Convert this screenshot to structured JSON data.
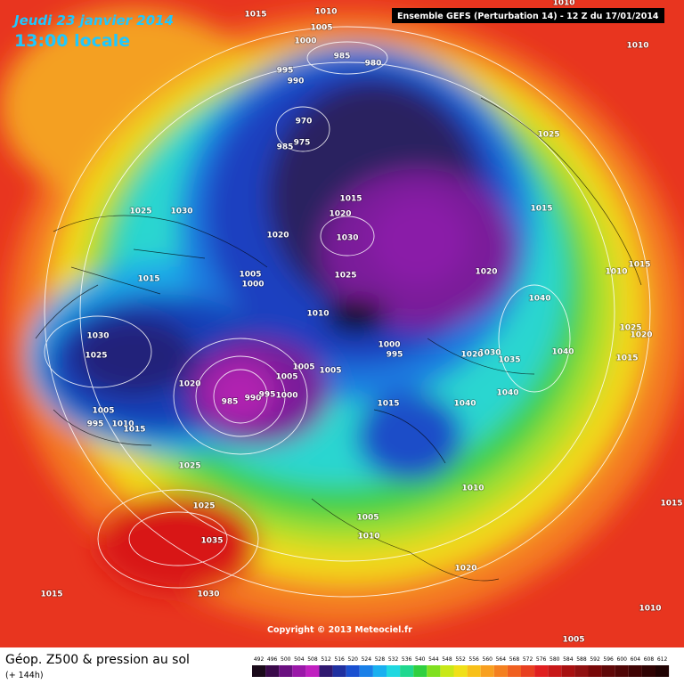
{
  "header": {
    "date": "Jeudi 23 janvier 2014",
    "time": "13:00 locale",
    "model": "Ensemble GEFS (Perturbation 14)  -  12 Z du 17/01/2014"
  },
  "footer": {
    "copyright": "Copyright © 2013 Meteociel.fr",
    "title": "Géop. Z500 & pression au sol",
    "lead": "(+ 144h)"
  },
  "pressure_labels": [
    1015,
    1010,
    1005,
    1000,
    995,
    990,
    985,
    980,
    970,
    975,
    985,
    1015,
    1020,
    1020,
    1030,
    1025,
    1005,
    1000,
    1010,
    1025,
    1030,
    1015,
    1030,
    1025,
    1020,
    1005,
    995,
    1010,
    1015,
    985,
    990,
    995,
    1000,
    1005,
    1005,
    1005,
    1000,
    995,
    1015,
    1040,
    1040,
    1020,
    1040,
    1030,
    1035,
    1020,
    1040,
    1015,
    1025,
    1010,
    1010,
    1015,
    1025,
    1020,
    1015,
    1025,
    1025,
    1035,
    1030,
    1015,
    1010,
    1005,
    1010,
    1020,
    1010,
    1005,
    1015,
    1010
  ],
  "legend": [
    492,
    496,
    500,
    504,
    508,
    512,
    516,
    520,
    524,
    528,
    532,
    536,
    540,
    544,
    548,
    552,
    556,
    560,
    564,
    568,
    572,
    576,
    580,
    584,
    588,
    592,
    596,
    600,
    604,
    608,
    612
  ]
}
